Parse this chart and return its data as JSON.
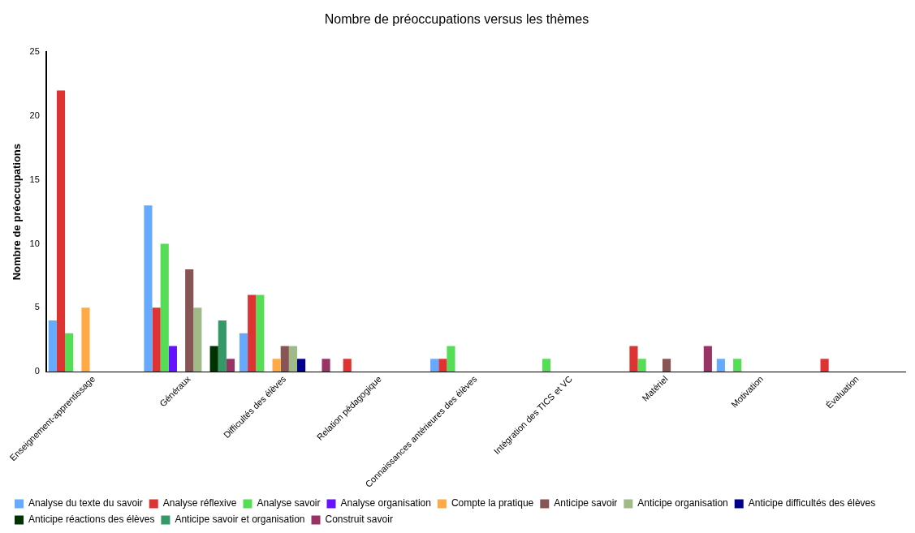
{
  "chart_data": {
    "type": "bar",
    "title": "Nombre de préoccupations versus les thèmes",
    "ylabel": "Nombre de préoccupations",
    "categories": [
      "Enseignement-apprentissage",
      "Généraux",
      "Difficultés des élèves",
      "Relation pédagogique",
      "Connaissances antérieures des élèves",
      "Intégration des TICS et VC",
      "Matériel",
      "Motivation",
      "Évaluation"
    ],
    "series": [
      {
        "name": "Analyse du texte du savoir",
        "color": "#66aaff",
        "values": [
          4,
          13,
          3,
          0,
          1,
          0,
          0,
          1,
          0
        ]
      },
      {
        "name": "Analyse réflexive",
        "color": "#dd3333",
        "values": [
          22,
          5,
          6,
          1,
          1,
          0,
          2,
          0,
          1
        ]
      },
      {
        "name": "Analyse savoir",
        "color": "#55dd55",
        "values": [
          3,
          10,
          6,
          0,
          2,
          1,
          1,
          1,
          0
        ]
      },
      {
        "name": "Analyse organisation",
        "color": "#6611ff",
        "values": [
          0,
          2,
          0,
          0,
          0,
          0,
          0,
          0,
          0
        ]
      },
      {
        "name": "Compte la pratique",
        "color": "#ffaa44",
        "values": [
          5,
          0,
          1,
          0,
          0,
          0,
          0,
          0,
          0
        ]
      },
      {
        "name": "Anticipe savoir",
        "color": "#885555",
        "values": [
          0,
          8,
          2,
          0,
          0,
          0,
          1,
          0,
          0
        ]
      },
      {
        "name": "Anticipe organisation",
        "color": "#a0bb88",
        "values": [
          0,
          5,
          2,
          0,
          0,
          0,
          0,
          0,
          0
        ]
      },
      {
        "name": "Anticipe difficultés des élèves",
        "color": "#000088",
        "values": [
          0,
          0,
          1,
          0,
          0,
          0,
          0,
          0,
          0
        ]
      },
      {
        "name": "Anticipe réactions des élèves",
        "color": "#003300",
        "values": [
          0,
          2,
          0,
          0,
          0,
          0,
          0,
          0,
          0
        ]
      },
      {
        "name": "Anticipe savoir et organisation",
        "color": "#339966",
        "values": [
          0,
          4,
          0,
          0,
          0,
          0,
          0,
          0,
          0
        ]
      },
      {
        "name": "Construit savoir",
        "color": "#993366",
        "values": [
          0,
          1,
          1,
          0,
          0,
          0,
          2,
          0,
          0
        ]
      }
    ],
    "ylim": [
      0,
      25
    ],
    "yticks": [
      0,
      5,
      10,
      15,
      20,
      25
    ],
    "grid": false,
    "legend": "bottom"
  }
}
